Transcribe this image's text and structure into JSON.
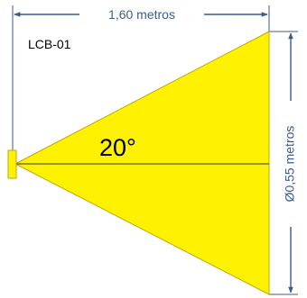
{
  "diagram": {
    "model": "LCB-01",
    "length_label": "1,60 metros",
    "diameter_label": "Ø0,55 metros",
    "angle_label": "20°"
  },
  "colors": {
    "beam_fill": "#fff200",
    "outline": "#bfa900",
    "dimension": "#3c5a8c",
    "text": "#000000",
    "axis": "#333333"
  }
}
